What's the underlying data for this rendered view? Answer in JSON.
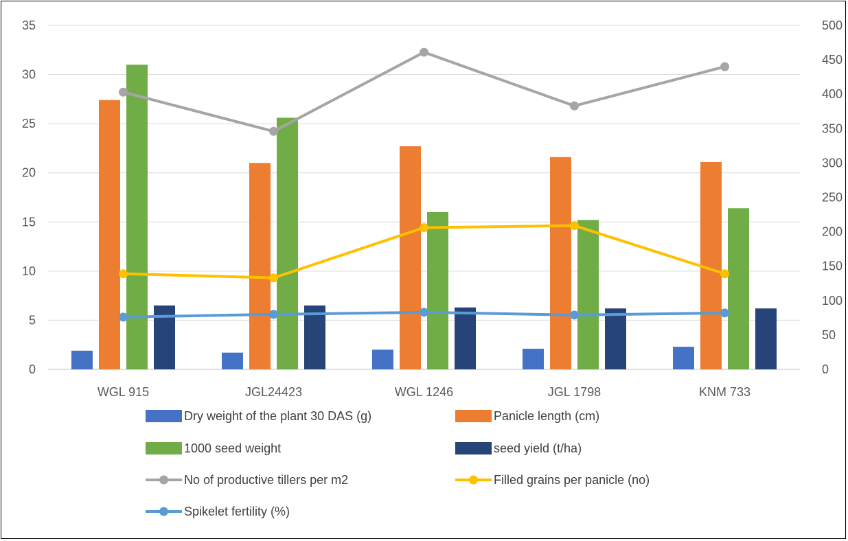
{
  "chart_data": {
    "type": "bar",
    "categories": [
      "WGL 915",
      "JGL24423",
      "WGL 1246",
      "JGL 1798",
      "KNM 733"
    ],
    "y_left": {
      "min": 0,
      "max": 35,
      "step": 5,
      "ticks": [
        "0",
        "5",
        "10",
        "15",
        "20",
        "25",
        "30",
        "35"
      ]
    },
    "y_right": {
      "min": 0,
      "max": 500,
      "step": 50,
      "ticks": [
        "0",
        "50",
        "100",
        "150",
        "200",
        "250",
        "300",
        "350",
        "400",
        "450",
        "500"
      ]
    },
    "grid": true,
    "legend_position": "bottom",
    "bar_series": [
      {
        "name": "Dry weight of the plant 30 DAS (g)",
        "color": "#4472C4",
        "axis": "left",
        "values": [
          1.9,
          1.7,
          2.0,
          2.1,
          2.3
        ]
      },
      {
        "name": "Panicle length (cm)",
        "color": "#ED7D31",
        "axis": "left",
        "values": [
          27.4,
          21.0,
          22.7,
          21.6,
          21.1
        ]
      },
      {
        "name": "1000 seed weight",
        "color": "#70AD47",
        "axis": "left",
        "values": [
          31.0,
          25.6,
          16.0,
          15.2,
          16.4
        ]
      },
      {
        "name": "seed yield (t/ha)",
        "color": "#264478",
        "axis": "left",
        "values": [
          6.5,
          6.5,
          6.3,
          6.2,
          6.2
        ]
      }
    ],
    "line_series": [
      {
        "name": "No of productive tillers per m2",
        "color": "#A5A5A5",
        "axis": "right",
        "values": [
          403,
          346,
          461,
          383,
          440
        ]
      },
      {
        "name": "Filled grains per panicle (no)",
        "color": "#FFC000",
        "axis": "right",
        "values": [
          139,
          133,
          206,
          209,
          139
        ]
      },
      {
        "name": "Spikelet fertility (%)",
        "color": "#5B9BD5",
        "axis": "right",
        "values": [
          76,
          80,
          83,
          79,
          82
        ]
      }
    ]
  }
}
